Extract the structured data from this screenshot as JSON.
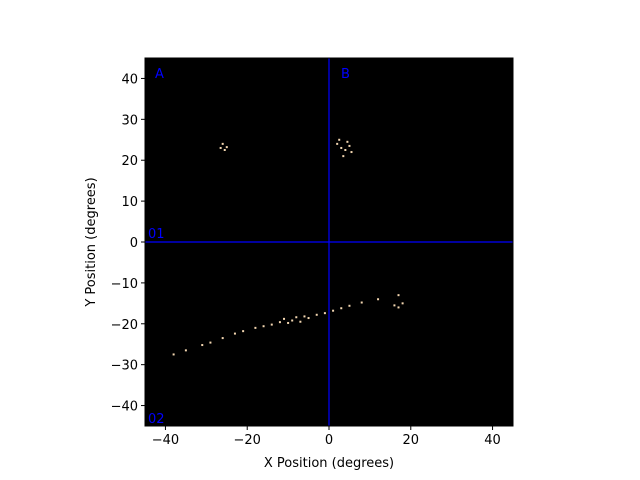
{
  "chart_data": {
    "type": "scatter",
    "xlabel": "X Position (degrees)",
    "ylabel": "Y Position (degrees)",
    "xlim": [
      -45,
      45
    ],
    "ylim": [
      -45,
      45
    ],
    "xticks": [
      {
        "value": -40,
        "label": "−40"
      },
      {
        "value": -20,
        "label": "−20"
      },
      0,
      20,
      40
    ],
    "yticks": [
      {
        "value": -40,
        "label": "−40"
      },
      {
        "value": -30,
        "label": "−30"
      },
      {
        "value": -20,
        "label": "−20"
      },
      {
        "value": -10,
        "label": "−10"
      },
      0,
      10,
      20,
      30,
      40
    ],
    "background": "#000000",
    "reference_lines": {
      "x": [
        0
      ],
      "y": [
        0
      ],
      "color": "#0000ff"
    },
    "annotations": [
      "A",
      "B",
      "01",
      "02"
    ],
    "series": [
      {
        "color": "#f3d6b0",
        "x": [
          -38,
          -35,
          -31,
          -29,
          -26,
          -23,
          -21,
          -18,
          -16,
          -14,
          -12,
          -11,
          -10,
          -9,
          -8,
          -7,
          -6,
          -5,
          -3,
          -1,
          1,
          3,
          5,
          8,
          12,
          16,
          17,
          17,
          18,
          -26,
          -25.5,
          -25,
          -26.5,
          2,
          3,
          4,
          5,
          3.5,
          2.5,
          4.5,
          5.5
        ],
        "y": [
          -27.5,
          -26.5,
          -25.2,
          -24.6,
          -23.5,
          -22.4,
          -21.8,
          -21,
          -20.6,
          -20.2,
          -19.6,
          -18.8,
          -19.8,
          -19.2,
          -18.4,
          -19.5,
          -18.2,
          -18.6,
          -17.8,
          -17.4,
          -16.8,
          -16.2,
          -15.6,
          -14.8,
          -14,
          -15.5,
          -13,
          -16,
          -15,
          24,
          22.5,
          23.2,
          23,
          24,
          23,
          22.5,
          23.5,
          21,
          25,
          24.5,
          22
        ]
      }
    ]
  }
}
